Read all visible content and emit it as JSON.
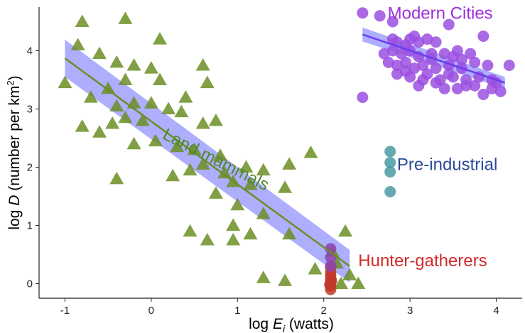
{
  "chart_data": {
    "type": "scatter",
    "xlabel": {
      "prefix": "log ",
      "var": "E",
      "sub": "i",
      "suffix": " (watts)"
    },
    "ylabel": {
      "prefix": "log ",
      "var": "D",
      "suffix": " (number per km",
      "sup": "2",
      "close": ")"
    },
    "xlim": [
      -1.3,
      4.3
    ],
    "ylim": [
      -0.25,
      4.75
    ],
    "xticks": [
      -1,
      0,
      1,
      2,
      3,
      4
    ],
    "yticks": [
      0,
      1,
      2,
      3,
      4
    ],
    "grid": false,
    "series": [
      {
        "name": "Land mammals",
        "marker": "triangle",
        "color": "#6b8e23",
        "points": [
          [
            -1.0,
            3.45
          ],
          [
            -0.8,
            4.5
          ],
          [
            -0.85,
            4.1
          ],
          [
            -0.3,
            4.55
          ],
          [
            0.1,
            4.2
          ],
          [
            -0.6,
            3.95
          ],
          [
            -0.4,
            3.8
          ],
          [
            -0.2,
            3.75
          ],
          [
            0.0,
            3.7
          ],
          [
            0.6,
            3.75
          ],
          [
            0.65,
            3.45
          ],
          [
            -0.3,
            3.5
          ],
          [
            0.1,
            3.5
          ],
          [
            -0.5,
            3.35
          ],
          [
            -0.7,
            3.2
          ],
          [
            -0.4,
            3.05
          ],
          [
            -0.2,
            3.1
          ],
          [
            0.0,
            3.1
          ],
          [
            0.2,
            3.0
          ],
          [
            0.4,
            3.2
          ],
          [
            -0.8,
            2.7
          ],
          [
            -0.6,
            2.6
          ],
          [
            -0.45,
            2.75
          ],
          [
            -0.3,
            2.85
          ],
          [
            -0.1,
            2.8
          ],
          [
            0.05,
            2.45
          ],
          [
            0.35,
            2.95
          ],
          [
            0.6,
            2.75
          ],
          [
            0.75,
            2.8
          ],
          [
            -0.2,
            2.4
          ],
          [
            0.3,
            2.35
          ],
          [
            0.5,
            2.3
          ],
          [
            0.6,
            2.05
          ],
          [
            0.8,
            2.2
          ],
          [
            1.1,
            2.0
          ],
          [
            1.3,
            1.95
          ],
          [
            -0.4,
            1.8
          ],
          [
            0.25,
            1.85
          ],
          [
            0.45,
            1.95
          ],
          [
            0.85,
            1.9
          ],
          [
            1.55,
            1.65
          ],
          [
            1.6,
            2.05
          ],
          [
            1.85,
            2.25
          ],
          [
            0.95,
            1.75
          ],
          [
            1.15,
            1.7
          ],
          [
            0.75,
            1.55
          ],
          [
            1.0,
            1.35
          ],
          [
            1.3,
            1.2
          ],
          [
            0.95,
            1.0
          ],
          [
            0.45,
            0.9
          ],
          [
            0.65,
            0.75
          ],
          [
            1.15,
            0.85
          ],
          [
            1.6,
            0.85
          ],
          [
            0.95,
            0.75
          ],
          [
            1.3,
            0.1
          ],
          [
            1.55,
            0.05
          ],
          [
            1.9,
            0.25
          ],
          [
            2.25,
            0.9
          ],
          [
            2.1,
            0.55
          ],
          [
            2.2,
            0.0
          ],
          [
            2.3,
            0.15
          ],
          [
            2.4,
            0.0
          ],
          [
            2.15,
            0.35
          ]
        ]
      },
      {
        "name": "Modern Cities",
        "marker": "circle",
        "color": "#9b4fe0",
        "points": [
          [
            2.45,
            4.65
          ],
          [
            2.65,
            4.6
          ],
          [
            2.8,
            4.5
          ],
          [
            3.45,
            4.45
          ],
          [
            2.45,
            3.2
          ],
          [
            2.8,
            4.2
          ],
          [
            2.85,
            4.15
          ],
          [
            2.95,
            4.1
          ],
          [
            3.0,
            4.2
          ],
          [
            3.1,
            4.15
          ],
          [
            3.2,
            4.2
          ],
          [
            3.3,
            4.15
          ],
          [
            2.8,
            4.0
          ],
          [
            2.9,
            3.95
          ],
          [
            3.0,
            4.0
          ],
          [
            3.1,
            3.9
          ],
          [
            3.25,
            3.95
          ],
          [
            3.4,
            3.95
          ],
          [
            3.5,
            3.9
          ],
          [
            3.6,
            3.85
          ],
          [
            2.75,
            3.8
          ],
          [
            2.85,
            3.75
          ],
          [
            2.95,
            3.8
          ],
          [
            3.05,
            3.7
          ],
          [
            3.15,
            3.75
          ],
          [
            3.3,
            3.7
          ],
          [
            3.45,
            3.75
          ],
          [
            3.6,
            3.7
          ],
          [
            3.75,
            3.8
          ],
          [
            3.9,
            3.75
          ],
          [
            2.85,
            3.6
          ],
          [
            3.0,
            3.55
          ],
          [
            3.2,
            3.6
          ],
          [
            3.35,
            3.5
          ],
          [
            3.5,
            3.55
          ],
          [
            3.65,
            3.5
          ],
          [
            3.8,
            3.55
          ],
          [
            3.95,
            3.5
          ],
          [
            3.1,
            3.4
          ],
          [
            3.3,
            3.45
          ],
          [
            3.55,
            3.35
          ],
          [
            3.75,
            3.4
          ],
          [
            3.95,
            3.35
          ],
          [
            4.05,
            3.3
          ],
          [
            3.85,
            3.25
          ],
          [
            3.15,
            3.5
          ],
          [
            3.4,
            3.35
          ],
          [
            3.65,
            3.4
          ],
          [
            2.95,
            3.65
          ],
          [
            3.25,
            3.85
          ],
          [
            3.85,
            4.25
          ],
          [
            4.15,
            3.75
          ],
          [
            3.05,
            4.25
          ],
          [
            3.55,
            4.0
          ],
          [
            3.7,
            3.95
          ],
          [
            3.45,
            3.6
          ],
          [
            4.0,
            3.45
          ],
          [
            2.7,
            3.95
          ]
        ]
      },
      {
        "name": "Pre-industrial",
        "marker": "circle",
        "color": "#4a9aa5",
        "points": [
          [
            2.77,
            2.27
          ],
          [
            2.77,
            2.08
          ],
          [
            2.77,
            1.92
          ],
          [
            2.77,
            1.58
          ]
        ]
      },
      {
        "name": "Hunter-gatherers",
        "marker": "circle",
        "color": "#c0392b",
        "points": [
          [
            2.08,
            0.28
          ],
          [
            2.08,
            0.2
          ],
          [
            2.08,
            0.14
          ],
          [
            2.08,
            0.08
          ],
          [
            2.08,
            0.02
          ],
          [
            2.08,
            -0.04
          ],
          [
            2.08,
            -0.1
          ],
          [
            2.09,
            0.05
          ],
          [
            2.07,
            -0.02
          ]
        ]
      },
      {
        "name": "",
        "marker": "circle",
        "color": "#8e44ad",
        "points": [
          [
            2.08,
            0.6
          ],
          [
            2.08,
            0.45
          ],
          [
            2.08,
            0.3
          ]
        ]
      }
    ],
    "fits": [
      {
        "series": "Land mammals",
        "x": [
          -1.0,
          2.3
        ],
        "y": [
          3.87,
          0.3
        ],
        "line_color": "#6b8e23",
        "band_color": "#6b6bff",
        "band_halfwidth": [
          0.32,
          0.28
        ]
      },
      {
        "series": "Modern Cities",
        "x": [
          2.45,
          4.1
        ],
        "y": [
          4.28,
          3.45
        ],
        "line_color": "#6a3df0",
        "band_color": "#6b6bff",
        "band_halfwidth": [
          0.12,
          0.1
        ]
      }
    ],
    "annotations": [
      {
        "text": "Modern Cities",
        "color": "#9b30d9",
        "x": 3.35,
        "y": 4.55,
        "anchor": "middle"
      },
      {
        "text": "Pre-industrial",
        "color": "#2c4a9a",
        "x": 2.85,
        "y": 1.95,
        "anchor": "start"
      },
      {
        "text": "Hunter-gatherers",
        "color": "#d22b2b",
        "x": 2.4,
        "y": 0.3,
        "anchor": "start"
      },
      {
        "text": "Land mammals",
        "color": "#4f8a2a",
        "x": 0.12,
        "y": 2.5,
        "anchor": "start",
        "rotate": 27
      }
    ]
  }
}
